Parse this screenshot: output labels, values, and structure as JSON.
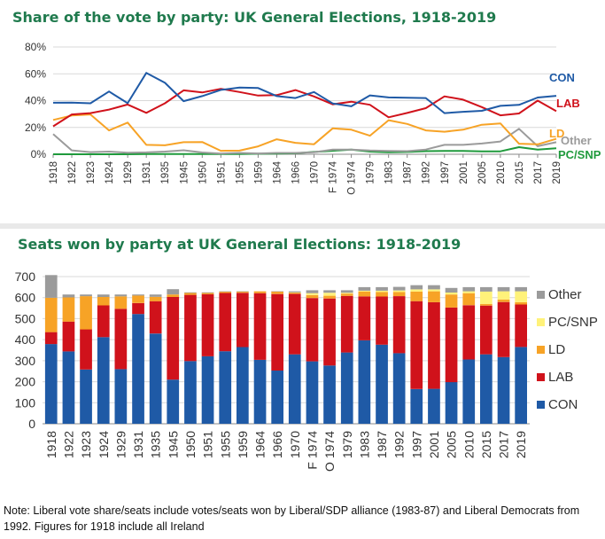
{
  "top_title": "Share of the vote by party: UK General Elections, 1918-2019",
  "bottom_title": "Seats won by party at UK General Elections: 1918-2019",
  "note": "Note:  Liberal vote share/seats include votes/seats won by Liberal/SDP alliance (1983-87) and Liberal Democrats from 1992. Figures for 1918 include all Ireland",
  "colors": {
    "CON": "#1f5aa6",
    "LAB": "#d0121b",
    "LD": "#f7a326",
    "Other": "#9b9b9b",
    "PC/SNP": "#fff27a",
    "PCSNP_line": "#1f9a3c",
    "title": "#1f7a4d"
  },
  "chart_data": [
    {
      "type": "line",
      "title": "Share of the vote by party: UK General Elections, 1918-2019",
      "x": [
        "1918",
        "1922",
        "1923",
        "1924",
        "1929",
        "1931",
        "1935",
        "1945",
        "1950",
        "1951",
        "1955",
        "1959",
        "1964",
        "1966",
        "1970",
        "F 1974",
        "O 1974",
        "1979",
        "1983",
        "1987",
        "1992",
        "1997",
        "2001",
        "2005",
        "2010",
        "2015",
        "2017",
        "2019"
      ],
      "ylim": [
        0,
        80
      ],
      "yticks": [
        "0%",
        "20%",
        "40%",
        "60%",
        "80%"
      ],
      "grid": "horizontal",
      "series": [
        {
          "name": "CON",
          "color": "#1f5aa6",
          "values": [
            38.4,
            38.5,
            38.0,
            46.8,
            38.1,
            60.7,
            53.3,
            39.6,
            43.4,
            48.0,
            49.7,
            49.4,
            43.4,
            41.9,
            46.4,
            37.9,
            35.8,
            43.9,
            42.4,
            42.2,
            41.9,
            30.7,
            31.7,
            32.4,
            36.1,
            36.8,
            42.3,
            43.6
          ]
        },
        {
          "name": "LAB",
          "color": "#d0121b",
          "values": [
            20.8,
            29.7,
            30.7,
            33.3,
            37.1,
            30.9,
            38.0,
            47.7,
            46.1,
            48.8,
            46.4,
            43.8,
            44.1,
            47.9,
            43.1,
            37.2,
            39.2,
            36.9,
            27.6,
            30.8,
            34.4,
            43.2,
            40.7,
            35.2,
            29.0,
            30.4,
            40.0,
            32.1
          ]
        },
        {
          "name": "LD",
          "color": "#f7a326",
          "values": [
            25.6,
            28.9,
            29.7,
            17.8,
            23.6,
            7.0,
            6.7,
            9.0,
            9.1,
            2.6,
            2.7,
            5.9,
            11.2,
            8.5,
            7.5,
            19.3,
            18.3,
            13.8,
            25.4,
            22.6,
            17.8,
            16.8,
            18.3,
            22.0,
            23.0,
            7.9,
            7.4,
            11.5
          ]
        },
        {
          "name": "Other",
          "color": "#9b9b9b",
          "values": [
            15.0,
            2.9,
            1.6,
            2.0,
            1.2,
            1.4,
            2.0,
            3.0,
            1.3,
            0.5,
            1.0,
            0.6,
            1.0,
            1.0,
            1.5,
            3.5,
            3.5,
            2.8,
            2.5,
            2.3,
            3.5,
            7.0,
            7.0,
            8.0,
            9.5,
            19.0,
            6.0,
            9.0
          ]
        },
        {
          "name": "PC/SNP",
          "color": "#1f9a3c",
          "values": [
            0.0,
            0.0,
            0.0,
            0.0,
            0.0,
            0.1,
            0.1,
            0.2,
            0.1,
            0.1,
            0.2,
            0.4,
            0.5,
            0.7,
            1.7,
            2.6,
            3.5,
            2.0,
            1.5,
            1.7,
            2.3,
            2.5,
            2.5,
            2.2,
            2.2,
            5.3,
            3.5,
            4.4
          ]
        }
      ]
    },
    {
      "type": "bar",
      "stacked": true,
      "title": "Seats won by party at UK General Elections: 1918-2019",
      "categories": [
        "1918",
        "1922",
        "1923",
        "1924",
        "1929",
        "1931",
        "1935",
        "1945",
        "1950",
        "1951",
        "1955",
        "1959",
        "1964",
        "1966",
        "1970",
        "F 1974",
        "O 1974",
        "1979",
        "1983",
        "1987",
        "1992",
        "1997",
        "2001",
        "2005",
        "2010",
        "2015",
        "2017",
        "2019"
      ],
      "ylim": [
        0,
        700
      ],
      "yticks": [
        "0",
        "100",
        "200",
        "300",
        "400",
        "500",
        "600",
        "700"
      ],
      "legend": "right",
      "series": [
        {
          "name": "CON",
          "color": "#1f5aa6",
          "values": [
            379,
            344,
            258,
            412,
            260,
            522,
            429,
            210,
            298,
            321,
            345,
            365,
            304,
            253,
            330,
            297,
            277,
            339,
            397,
            376,
            336,
            165,
            166,
            198,
            306,
            330,
            317,
            365
          ]
        },
        {
          "name": "LAB",
          "color": "#d0121b",
          "values": [
            57,
            142,
            191,
            151,
            287,
            52,
            154,
            393,
            315,
            295,
            277,
            258,
            317,
            364,
            288,
            301,
            319,
            269,
            209,
            229,
            271,
            418,
            412,
            355,
            258,
            232,
            262,
            202
          ]
        },
        {
          "name": "LD",
          "color": "#f7a326",
          "values": [
            163,
            115,
            158,
            40,
            59,
            36,
            21,
            12,
            9,
            6,
            6,
            6,
            9,
            12,
            6,
            14,
            13,
            11,
            23,
            22,
            20,
            46,
            52,
            62,
            57,
            8,
            12,
            11
          ]
        },
        {
          "name": "PC/SNP",
          "color": "#fff27a",
          "values": [
            0,
            0,
            0,
            0,
            0,
            0,
            0,
            0,
            0,
            0,
            0,
            0,
            0,
            0,
            1,
            9,
            14,
            4,
            4,
            6,
            7,
            10,
            9,
            9,
            9,
            59,
            39,
            52
          ]
        },
        {
          "name": "Other",
          "color": "#9b9b9b",
          "values": [
            108,
            14,
            8,
            12,
            9,
            5,
            11,
            25,
            3,
            3,
            2,
            1,
            0,
            1,
            5,
            14,
            12,
            12,
            17,
            17,
            17,
            20,
            20,
            22,
            20,
            21,
            20,
            20
          ]
        }
      ],
      "legend_order": [
        "Other",
        "PC/SNP",
        "LD",
        "LAB",
        "CON"
      ]
    }
  ]
}
